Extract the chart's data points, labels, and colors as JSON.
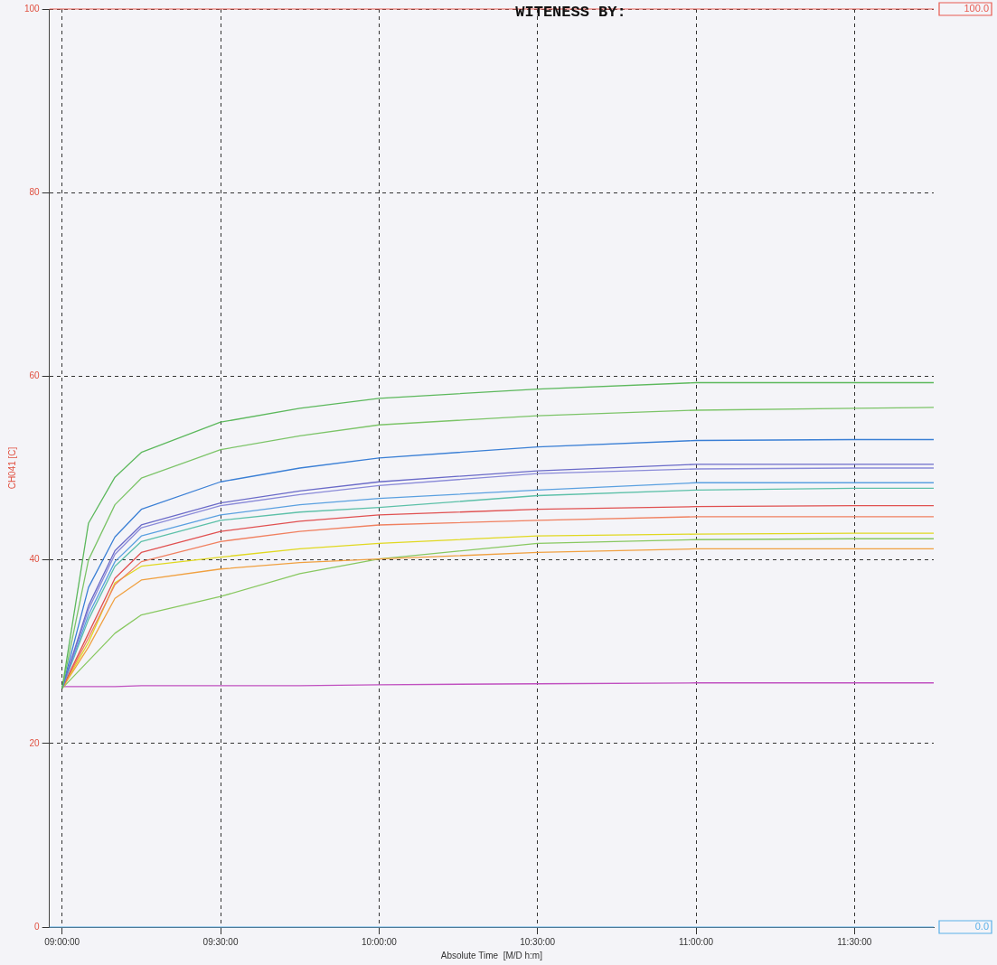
{
  "chart_data": {
    "type": "line",
    "annotations": [
      "WITENESS BY:"
    ],
    "xlabel": "Absolute Time  [M/D h:m]",
    "ylabel": "CH041 [C]",
    "x": [
      9.0,
      9.0833,
      9.1667,
      9.25,
      9.5,
      9.75,
      10.0,
      10.5,
      11.0,
      11.5,
      11.75
    ],
    "xlim": [
      8.96,
      11.75
    ],
    "xticks": [
      {
        "value": 9,
        "label": "09:00:00"
      },
      {
        "value": 9.5,
        "label": "09:30:00"
      },
      {
        "value": 10,
        "label": "10:00:00"
      },
      {
        "value": 10.5,
        "label": "10:30:00"
      },
      {
        "value": 11,
        "label": "11:00:00"
      },
      {
        "value": 11.5,
        "label": "11:30:00"
      }
    ],
    "ylim": [
      0,
      100
    ],
    "yticks": [
      0,
      20,
      40,
      60,
      80,
      100
    ],
    "grid": true,
    "legend": false,
    "marker": "none",
    "line_style": "solid",
    "ref_lines": [
      {
        "axis": "y",
        "value": 100,
        "label": "100.0",
        "color": "#e85a50"
      },
      {
        "axis": "y",
        "value": 0,
        "label": "0.0",
        "color": "#5ab0e8"
      }
    ],
    "series": [
      {
        "color": "#5cb85c",
        "values": [
          26,
          44,
          49,
          51.7,
          55,
          56.5,
          57.6,
          58.6,
          59.3,
          59.3,
          59.3
        ]
      },
      {
        "color": "#7cc468",
        "values": [
          26,
          40,
          46,
          48.9,
          52,
          53.5,
          54.7,
          55.7,
          56.3,
          56.5,
          56.6
        ]
      },
      {
        "color": "#3a7fd5",
        "values": [
          26,
          37,
          42.5,
          45.5,
          48.5,
          50,
          51.1,
          52.3,
          53,
          53.1,
          53.1
        ]
      },
      {
        "color": "#6a6ac8",
        "values": [
          26,
          35,
          41,
          43.8,
          46.2,
          47.5,
          48.5,
          49.7,
          50.4,
          50.4,
          50.4
        ]
      },
      {
        "color": "#8a8ad8",
        "values": [
          26,
          34.6,
          40.6,
          43.5,
          45.9,
          47.1,
          48.1,
          49.4,
          49.9,
          50,
          50
        ]
      },
      {
        "color": "#5aa0e0",
        "values": [
          26,
          34,
          39.8,
          42.6,
          44.9,
          46,
          46.7,
          47.6,
          48.4,
          48.4,
          48.4
        ]
      },
      {
        "color": "#5cc0a8",
        "values": [
          26,
          33.5,
          39.3,
          42,
          44.3,
          45.2,
          45.7,
          47,
          47.6,
          47.8,
          47.8
        ]
      },
      {
        "color": "#e05050",
        "values": [
          26,
          32,
          38,
          40.8,
          43.1,
          44.2,
          44.9,
          45.5,
          45.8,
          45.9,
          45.9
        ]
      },
      {
        "color": "#f08060",
        "values": [
          26,
          31.5,
          37.3,
          39.8,
          42,
          43.1,
          43.8,
          44.3,
          44.7,
          44.7,
          44.7
        ]
      },
      {
        "color": "#e0d820",
        "values": [
          26,
          31,
          37.5,
          39.3,
          40.3,
          41.2,
          41.8,
          42.6,
          42.8,
          42.9,
          42.9
        ]
      },
      {
        "color": "#f0a040",
        "values": [
          26,
          30.5,
          35.8,
          37.8,
          39,
          39.7,
          40.1,
          40.8,
          41.2,
          41.2,
          41.2
        ]
      },
      {
        "color": "#88c860",
        "values": [
          26,
          29,
          32,
          34,
          36,
          38.5,
          40.1,
          41.8,
          42.2,
          42.3,
          42.3
        ]
      },
      {
        "color": "#c050c0",
        "values": [
          26.2,
          26.2,
          26.2,
          26.3,
          26.3,
          26.3,
          26.4,
          26.5,
          26.6,
          26.6,
          26.6
        ]
      }
    ]
  }
}
